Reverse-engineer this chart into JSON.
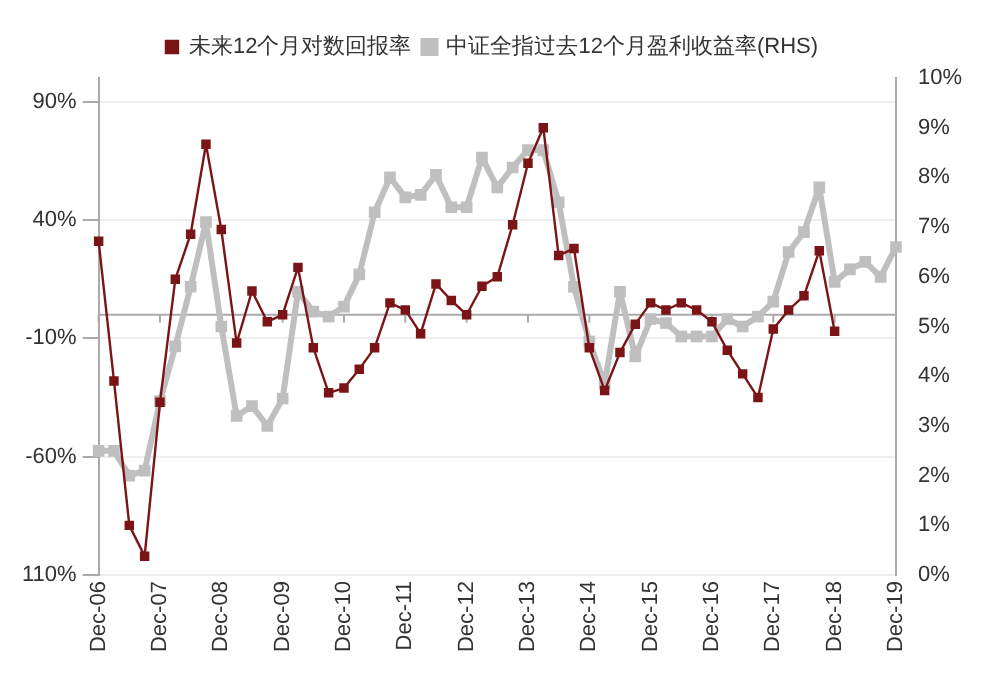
{
  "chart_data": {
    "type": "line",
    "categories": [
      "Dec-06",
      null,
      null,
      null,
      "Dec-07",
      null,
      null,
      null,
      "Dec-08",
      null,
      null,
      null,
      "Dec-09",
      null,
      null,
      null,
      "Dec-10",
      null,
      null,
      null,
      "Dec-11",
      null,
      null,
      null,
      "Dec-12",
      null,
      null,
      null,
      "Dec-13",
      null,
      null,
      null,
      "Dec-14",
      null,
      null,
      null,
      "Dec-15",
      null,
      null,
      null,
      "Dec-16",
      null,
      null,
      null,
      "Dec-17",
      null,
      null,
      null,
      "Dec-18",
      null,
      null,
      null,
      "Dec-19"
    ],
    "series": [
      {
        "name": "未来12个月对数回报率",
        "color": "#7b1416",
        "values": [
          31,
          -28,
          -89,
          -102,
          -37,
          15,
          34,
          72,
          36,
          -12,
          10,
          -3,
          0,
          20,
          -14,
          -33,
          -31,
          -23,
          -14,
          5,
          2,
          -8,
          13,
          6,
          0,
          12,
          16,
          38,
          64,
          79,
          25,
          28,
          -14,
          -32,
          -16,
          -4,
          5,
          2,
          5,
          2,
          -3,
          -15,
          -25,
          -35,
          -6,
          2,
          8,
          27,
          -7,
          null,
          null,
          null,
          null
        ]
      },
      {
        "name": "中证全指过去12个月盈利收益率(RHS)",
        "color": "#bfbfbf",
        "axis": "y2",
        "values": [
          2.5,
          2.5,
          2.0,
          2.1,
          3.5,
          4.6,
          5.8,
          7.1,
          5.0,
          3.2,
          3.4,
          3.0,
          3.55,
          5.7,
          5.3,
          5.2,
          5.4,
          6.05,
          7.3,
          8.0,
          7.6,
          7.65,
          8.05,
          7.4,
          7.4,
          8.4,
          7.8,
          8.2,
          8.55,
          8.55,
          7.5,
          5.8,
          4.7,
          3.85,
          5.7,
          4.4,
          5.15,
          5.07,
          4.8,
          4.8,
          4.8,
          5.15,
          5.0,
          5.2,
          5.5,
          6.5,
          6.9,
          7.8,
          5.9,
          6.15,
          6.3,
          6.0,
          6.6
        ]
      }
    ],
    "ylim": [
      -110,
      100
    ],
    "yticks": [
      {
        "value": -110,
        "label": "110%"
      },
      {
        "value": -60,
        "label": "-60%"
      },
      {
        "value": -10,
        "label": "-10%"
      },
      {
        "value": 40,
        "label": "40%"
      },
      {
        "value": 90,
        "label": "90%"
      }
    ],
    "y2lim": [
      0,
      10
    ],
    "y2ticks": [
      {
        "value": 0,
        "label": "0%"
      },
      {
        "value": 1,
        "label": "1%"
      },
      {
        "value": 2,
        "label": "2%"
      },
      {
        "value": 3,
        "label": "3%"
      },
      {
        "value": 4,
        "label": "4%"
      },
      {
        "value": 5,
        "label": "5%"
      },
      {
        "value": 6,
        "label": "6%"
      },
      {
        "value": 7,
        "label": "7%"
      },
      {
        "value": 8,
        "label": "8%"
      },
      {
        "value": 9,
        "label": "9%"
      },
      {
        "value": 10,
        "label": "10%"
      }
    ],
    "grid": "y",
    "legend": "top",
    "marker": "square",
    "line_style": "solid"
  }
}
